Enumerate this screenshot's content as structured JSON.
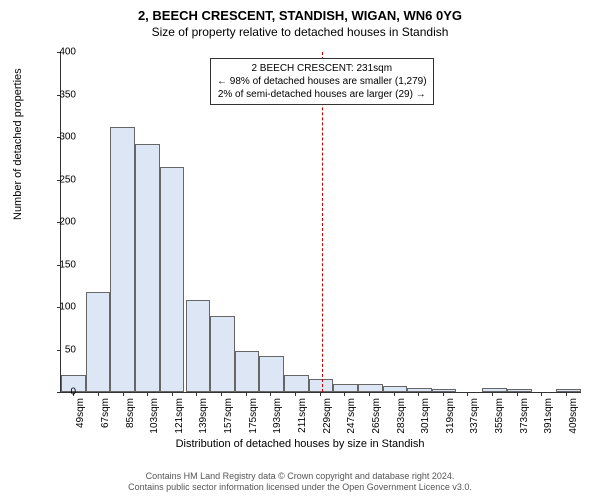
{
  "title_main": "2, BEECH CRESCENT, STANDISH, WIGAN, WN6 0YG",
  "title_sub": "Size of property relative to detached houses in Standish",
  "ylabel": "Number of detached properties",
  "xlabel": "Distribution of detached houses by size in Standish",
  "footer_line1": "Contains HM Land Registry data © Crown copyright and database right 2024.",
  "footer_line2": "Contains public sector information licensed under the Open Government Licence v3.0.",
  "annot_line1": "2 BEECH CRESCENT: 231sqm",
  "annot_line2": "← 98% of detached houses are smaller (1,279)",
  "annot_line3": "2% of semi-detached houses are larger (29) →",
  "chart": {
    "type": "histogram",
    "ylim": [
      0,
      400
    ],
    "ytick_step": 50,
    "background_color": "#ffffff",
    "bar_color": "#dce6f5",
    "bar_border": "#666666",
    "refline_color": "#d00000",
    "refline_x": 231,
    "x_min": 40,
    "x_max": 420,
    "x_tick_start": 49,
    "x_tick_step": 18,
    "x_tick_suffix": "sqm",
    "bin_width": 18,
    "bins": [
      {
        "x": 49,
        "v": 20
      },
      {
        "x": 67,
        "v": 118
      },
      {
        "x": 85,
        "v": 312
      },
      {
        "x": 103,
        "v": 292
      },
      {
        "x": 121,
        "v": 265
      },
      {
        "x": 140,
        "v": 108
      },
      {
        "x": 158,
        "v": 90
      },
      {
        "x": 176,
        "v": 48
      },
      {
        "x": 194,
        "v": 42
      },
      {
        "x": 212,
        "v": 20
      },
      {
        "x": 230,
        "v": 15
      },
      {
        "x": 248,
        "v": 10
      },
      {
        "x": 266,
        "v": 10
      },
      {
        "x": 284,
        "v": 7
      },
      {
        "x": 302,
        "v": 5
      },
      {
        "x": 320,
        "v": 4
      },
      {
        "x": 339,
        "v": 0
      },
      {
        "x": 357,
        "v": 5
      },
      {
        "x": 375,
        "v": 3
      },
      {
        "x": 393,
        "v": 0
      },
      {
        "x": 411,
        "v": 3
      }
    ]
  }
}
